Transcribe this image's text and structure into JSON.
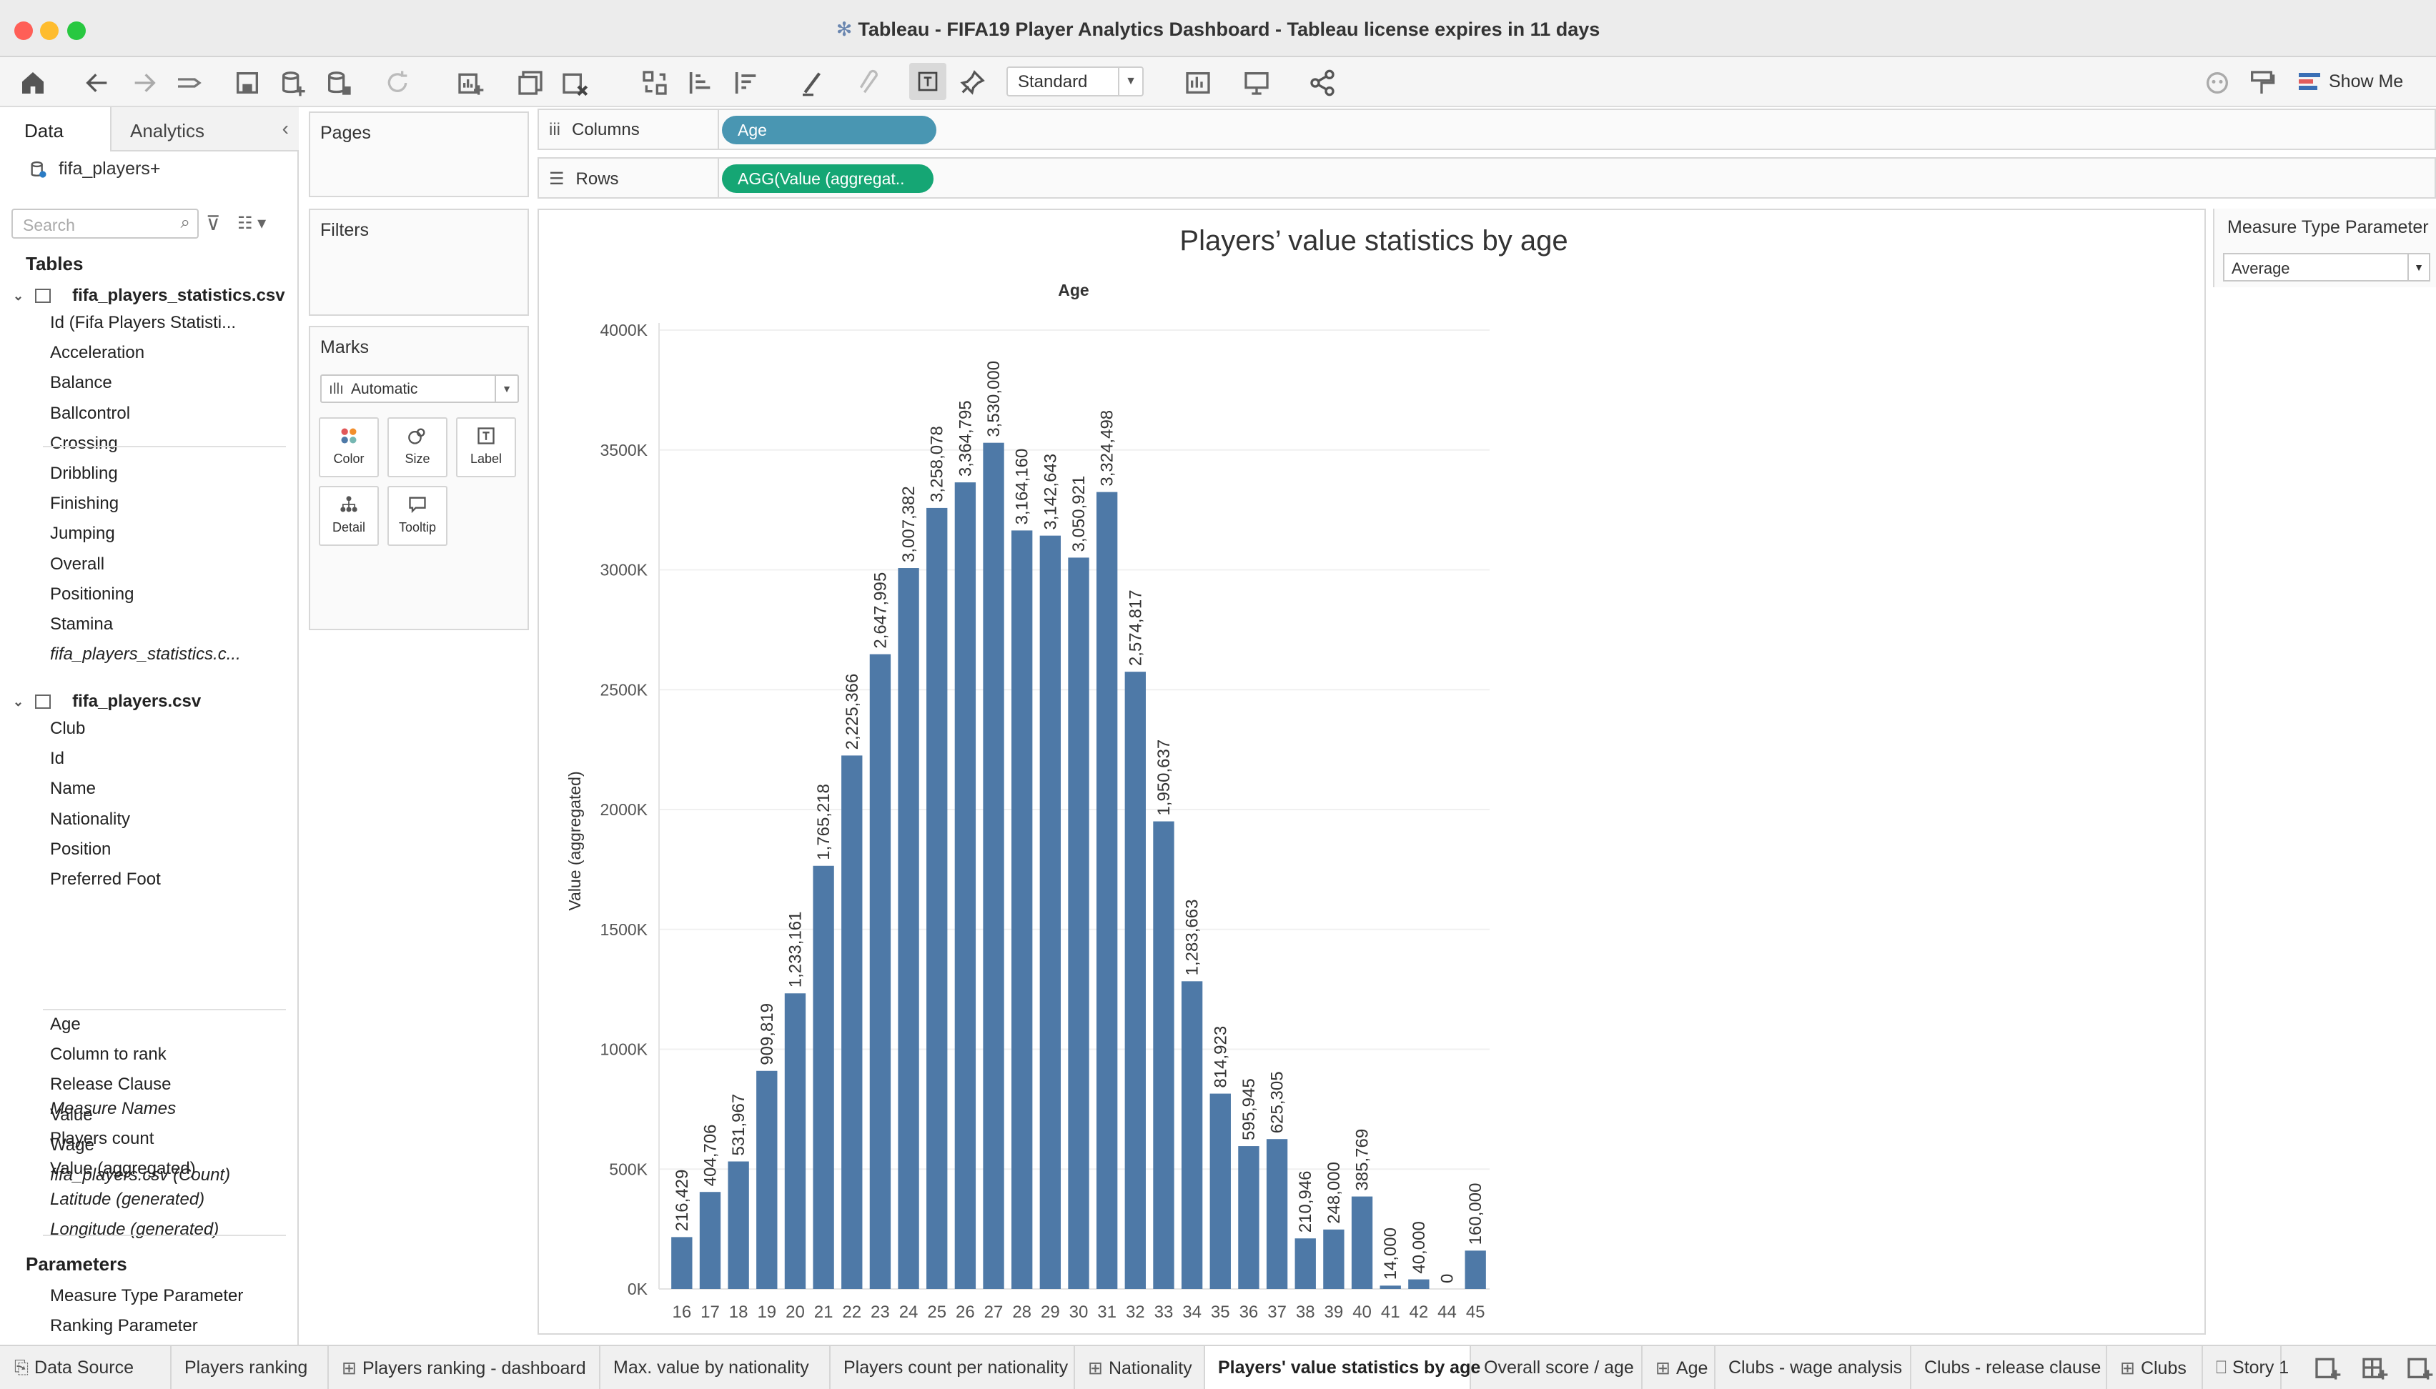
{
  "window": {
    "title": "Tableau - FIFA19 Player Analytics Dashboard  - Tableau license expires in 11 days"
  },
  "toolbar": {
    "marks_label_mode": "Standard",
    "show_me_label": "Show Me",
    "icons": [
      "home-icon",
      "undo-icon",
      "redo-icon",
      "replay-icon",
      "save-icon",
      "new-datasource-icon",
      "pause-updates-icon",
      "refresh-icon",
      "new-worksheet-icon",
      "duplicate-icon",
      "clear-sheet-icon",
      "swap-icon",
      "sort-ascending-icon",
      "sort-descending-icon",
      "highlight-icon",
      "group-icon",
      "show-labels-icon",
      "pin-icon",
      "chart-type-icon",
      "presentation-icon",
      "share-icon",
      "tableau-server-icon",
      "format-icon"
    ],
    "showme_colors": [
      "#3a6fb5",
      "#e05c5c",
      "#3a6fb5"
    ]
  },
  "data_pane": {
    "tab_data": "Data",
    "tab_analytics": "Analytics",
    "datasource": "fifa_players+",
    "search_placeholder": "Search",
    "tables_heading": "Tables",
    "table1": {
      "name": "fifa_players_statistics.csv",
      "fields": [
        {
          "label": "Id (Fifa Players Statisti...",
          "type": "#"
        },
        {
          "label": "Acceleration",
          "type": "#"
        },
        {
          "label": "Balance",
          "type": "#"
        },
        {
          "label": "Ballcontrol",
          "type": "#"
        },
        {
          "label": "Crossing",
          "type": "#"
        },
        {
          "label": "Dribbling",
          "type": "#"
        },
        {
          "label": "Finishing",
          "type": "#"
        },
        {
          "label": "Jumping",
          "type": "#"
        },
        {
          "label": "Overall",
          "type": "#"
        },
        {
          "label": "Positioning",
          "type": "#"
        },
        {
          "label": "Stamina",
          "type": "#"
        },
        {
          "label": "fifa_players_statistics.c...",
          "type": "#"
        }
      ]
    },
    "table2": {
      "name": "fifa_players.csv",
      "dim_fields": [
        {
          "label": "Club",
          "type": "Abc"
        },
        {
          "label": "Id",
          "type": "#"
        },
        {
          "label": "Name",
          "type": "Abc"
        },
        {
          "label": "Nationality",
          "type": "globe"
        },
        {
          "label": "Position",
          "type": "Abc"
        },
        {
          "label": "Preferred Foot",
          "type": "Abc"
        }
      ],
      "measure_fields": [
        {
          "label": "Age",
          "type": "#"
        },
        {
          "label": "Column to rank",
          "type": "=#"
        },
        {
          "label": "Release Clause",
          "type": "#"
        },
        {
          "label": "Value",
          "type": "#"
        },
        {
          "label": "Wage",
          "type": "#"
        },
        {
          "label": "fifa_players.csv (Count)",
          "type": "#"
        }
      ]
    },
    "extra_fields": [
      {
        "label": "Measure Names",
        "type": "Abc"
      },
      {
        "label": "Players count",
        "type": "=#"
      },
      {
        "label": "Value (aggregated)",
        "type": "=#"
      },
      {
        "label": "Latitude (generated)",
        "type": "globe"
      },
      {
        "label": "Longitude (generated)",
        "type": "globe"
      }
    ],
    "parameters_heading": "Parameters",
    "parameters": [
      {
        "label": "Measure Type Parameter",
        "type": "Abc"
      },
      {
        "label": "Ranking Parameter",
        "type": "Abc"
      }
    ]
  },
  "cards": {
    "pages": "Pages",
    "filters": "Filters",
    "marks": "Marks",
    "marks_type": "Automatic",
    "mark_buttons": [
      "Color",
      "Size",
      "Label",
      "Detail",
      "Tooltip"
    ]
  },
  "shelves": {
    "columns_label": "Columns",
    "rows_label": "Rows",
    "columns_pill": "Age",
    "rows_pill": "AGG(Value (aggregat.."
  },
  "parameter_card": {
    "title": "Measure Type Parameter",
    "value": "Average"
  },
  "chart_data": {
    "type": "bar",
    "title": "Players’ value statistics by age",
    "xlabel": "Age",
    "ylabel": "Value (aggregated)",
    "ylim": [
      0,
      4000000
    ],
    "yticks": [
      "0K",
      "500K",
      "1000K",
      "1500K",
      "2000K",
      "2500K",
      "3000K",
      "3500K",
      "4000K"
    ],
    "bar_color": "#4e79a7",
    "categories": [
      "16",
      "17",
      "18",
      "19",
      "20",
      "21",
      "22",
      "23",
      "24",
      "25",
      "26",
      "27",
      "28",
      "29",
      "30",
      "31",
      "32",
      "33",
      "34",
      "35",
      "36",
      "37",
      "38",
      "39",
      "40",
      "41",
      "42",
      "44",
      "45"
    ],
    "values": [
      216429,
      404706,
      531967,
      909819,
      1233161,
      1765218,
      2225366,
      2647995,
      3007382,
      3258078,
      3364795,
      3530000,
      3164160,
      3142643,
      3050921,
      3324498,
      2574817,
      1950637,
      1283663,
      814923,
      595945,
      625305,
      210946,
      248000,
      385769,
      14000,
      40000,
      0,
      160000
    ],
    "labels": [
      "216,429",
      "404,706",
      "531,967",
      "909,819",
      "1,233,161",
      "1,765,218",
      "2,225,366",
      "2,647,995",
      "3,007,382",
      "3,258,078",
      "3,364,795",
      "3,530,000",
      "3,164,160",
      "3,142,643",
      "3,050,921",
      "3,324,498",
      "2,574,817",
      "1,950,637",
      "1,283,663",
      "814,923",
      "595,945",
      "625,305",
      "210,946",
      "248,000",
      "385,769",
      "14,000",
      "40,000",
      "0",
      "160,000"
    ]
  },
  "sheet_tabs": [
    {
      "label": "Data Source",
      "icon": "datasource-icon"
    },
    {
      "label": "Players ranking",
      "icon": ""
    },
    {
      "label": "Players ranking - dashboard",
      "icon": "dashboard-icon"
    },
    {
      "label": "Max. value by nationality",
      "icon": ""
    },
    {
      "label": "Players count per nationality",
      "icon": ""
    },
    {
      "label": "Nationality",
      "icon": "dashboard-icon"
    },
    {
      "label": "Players' value statistics by age",
      "icon": "",
      "active": true
    },
    {
      "label": "Overall score / age",
      "icon": ""
    },
    {
      "label": "Age",
      "icon": "dashboard-icon"
    },
    {
      "label": "Clubs - wage analysis",
      "icon": ""
    },
    {
      "label": "Clubs - release clause",
      "icon": ""
    },
    {
      "label": "Clubs",
      "icon": "dashboard-icon"
    },
    {
      "label": "Story 1",
      "icon": "story-icon"
    }
  ]
}
